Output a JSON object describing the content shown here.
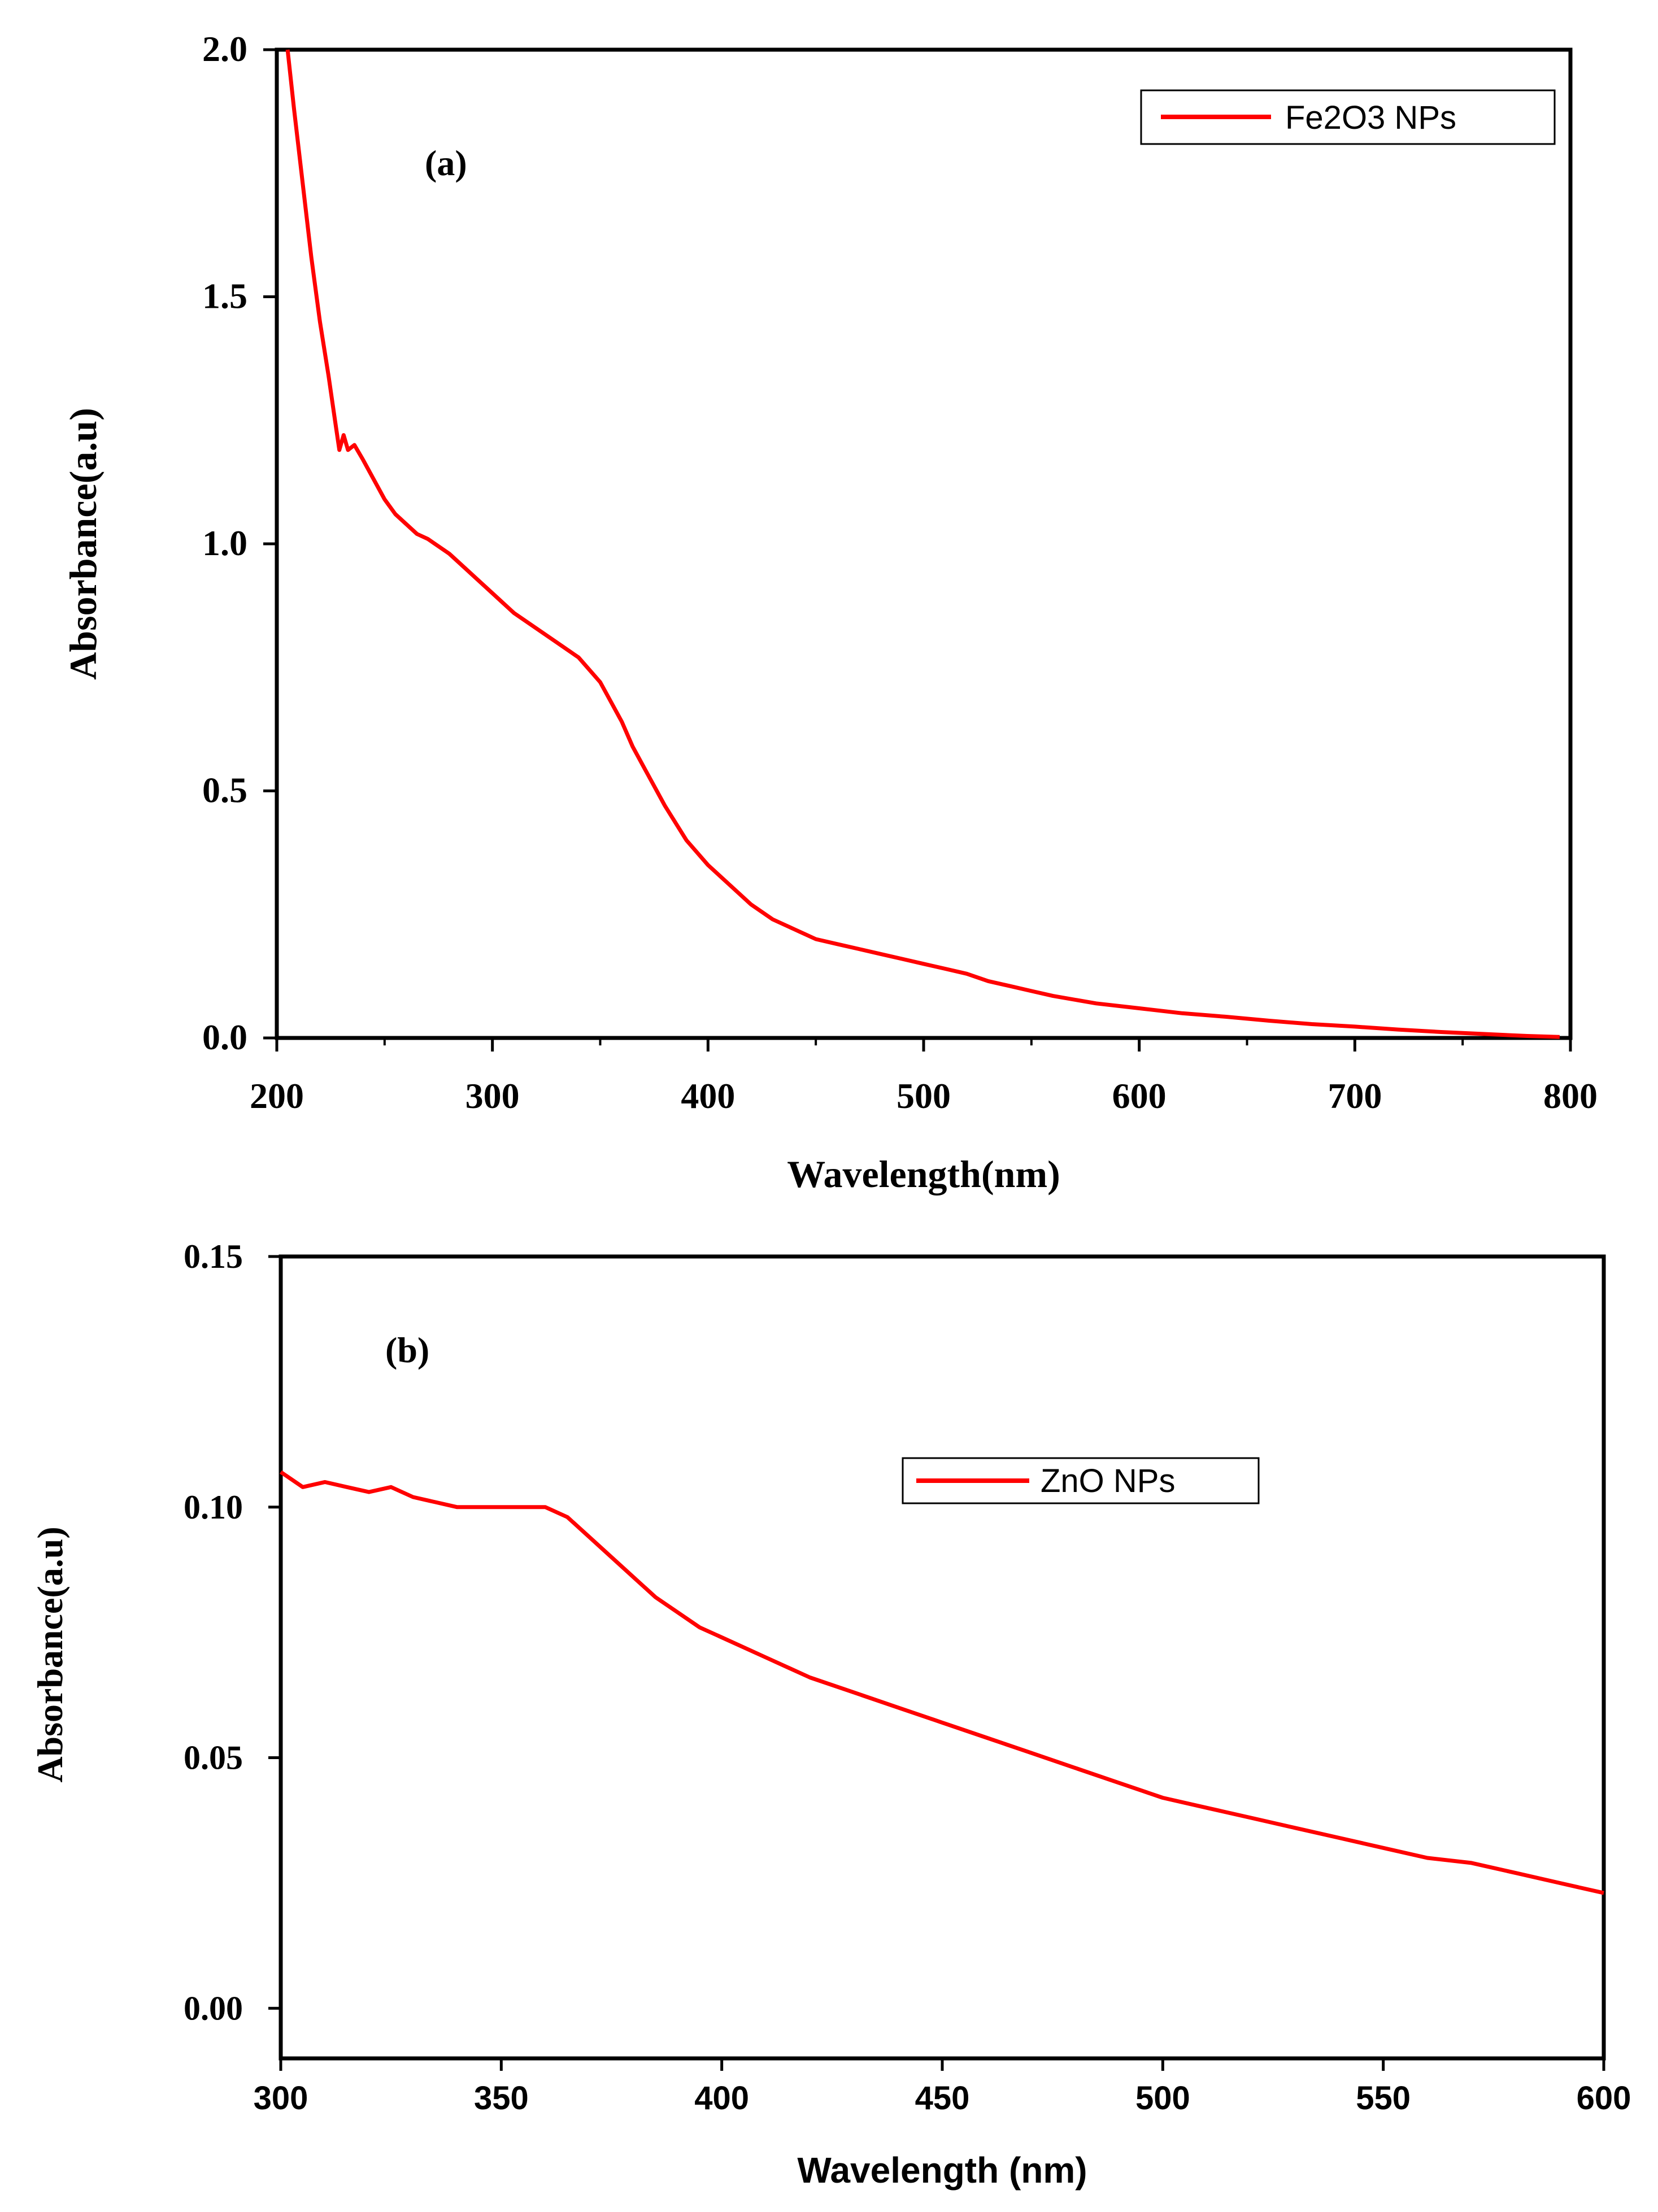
{
  "colors": {
    "series": "#ff0000",
    "axis": "#000000",
    "background": "#ffffff"
  },
  "chart_data": [
    {
      "id": "a",
      "type": "line",
      "panel_label": "(a)",
      "xlabel": "Wavelength(nm)",
      "ylabel": "Absorbance(a.u)",
      "xlim": [
        200,
        800
      ],
      "ylim": [
        0.0,
        2.0
      ],
      "x_ticks": [
        200,
        300,
        400,
        500,
        600,
        700,
        800
      ],
      "x_tick_labels": [
        "200",
        "300",
        "400",
        "500",
        "600",
        "700",
        "800"
      ],
      "y_ticks": [
        0.0,
        0.5,
        1.0,
        1.5,
        2.0
      ],
      "y_tick_labels": [
        "0.0",
        "0.5",
        "1.0",
        "1.5",
        "2.0"
      ],
      "legend": {
        "position": "top-right"
      },
      "series": [
        {
          "name": "Fe2O3 NPs",
          "x": [
            205,
            208,
            212,
            216,
            220,
            224,
            227,
            229,
            231,
            233,
            236,
            240,
            245,
            250,
            255,
            260,
            265,
            270,
            280,
            290,
            300,
            310,
            320,
            330,
            340,
            350,
            355,
            360,
            365,
            370,
            380,
            390,
            400,
            410,
            420,
            430,
            440,
            450,
            460,
            470,
            480,
            490,
            500,
            510,
            520,
            530,
            540,
            550,
            560,
            580,
            600,
            620,
            640,
            660,
            680,
            700,
            720,
            740,
            760,
            780,
            795
          ],
          "y": [
            2.0,
            1.88,
            1.73,
            1.58,
            1.45,
            1.34,
            1.25,
            1.19,
            1.22,
            1.19,
            1.2,
            1.17,
            1.13,
            1.09,
            1.06,
            1.04,
            1.02,
            1.01,
            0.98,
            0.94,
            0.9,
            0.86,
            0.83,
            0.8,
            0.77,
            0.72,
            0.68,
            0.64,
            0.59,
            0.55,
            0.47,
            0.4,
            0.35,
            0.31,
            0.27,
            0.24,
            0.22,
            0.2,
            0.19,
            0.18,
            0.17,
            0.16,
            0.15,
            0.14,
            0.13,
            0.115,
            0.105,
            0.095,
            0.085,
            0.07,
            0.06,
            0.05,
            0.043,
            0.035,
            0.028,
            0.023,
            0.017,
            0.012,
            0.008,
            0.004,
            0.002
          ]
        }
      ]
    },
    {
      "id": "b",
      "type": "line",
      "panel_label": "(b)",
      "xlabel": "Wavelength (nm)",
      "ylabel": "Absorbance(a.u)",
      "xlim": [
        300,
        600
      ],
      "ylim": [
        -0.01,
        0.15
      ],
      "x_ticks": [
        300,
        350,
        400,
        450,
        500,
        550,
        600
      ],
      "x_tick_labels": [
        "300",
        "350",
        "400",
        "450",
        "500",
        "550",
        "600"
      ],
      "y_ticks": [
        0.0,
        0.05,
        0.1,
        0.15
      ],
      "y_tick_labels": [
        "0.00",
        "0.05",
        "0.10",
        "0.15"
      ],
      "legend": {
        "position": "upper-middle-right"
      },
      "series": [
        {
          "name": "ZnO NPs",
          "x": [
            300,
            305,
            310,
            315,
            320,
            325,
            330,
            335,
            340,
            345,
            350,
            355,
            360,
            365,
            370,
            375,
            380,
            385,
            390,
            395,
            400,
            410,
            420,
            430,
            440,
            450,
            460,
            470,
            480,
            490,
            500,
            510,
            520,
            530,
            540,
            550,
            560,
            570,
            580,
            590,
            600
          ],
          "y": [
            0.107,
            0.104,
            0.105,
            0.104,
            0.103,
            0.104,
            0.102,
            0.101,
            0.1,
            0.1,
            0.1,
            0.1,
            0.1,
            0.098,
            0.094,
            0.09,
            0.086,
            0.082,
            0.079,
            0.076,
            0.074,
            0.07,
            0.066,
            0.063,
            0.06,
            0.057,
            0.054,
            0.051,
            0.048,
            0.045,
            0.042,
            0.04,
            0.038,
            0.036,
            0.034,
            0.032,
            0.03,
            0.029,
            0.027,
            0.025,
            0.023
          ]
        }
      ]
    }
  ]
}
